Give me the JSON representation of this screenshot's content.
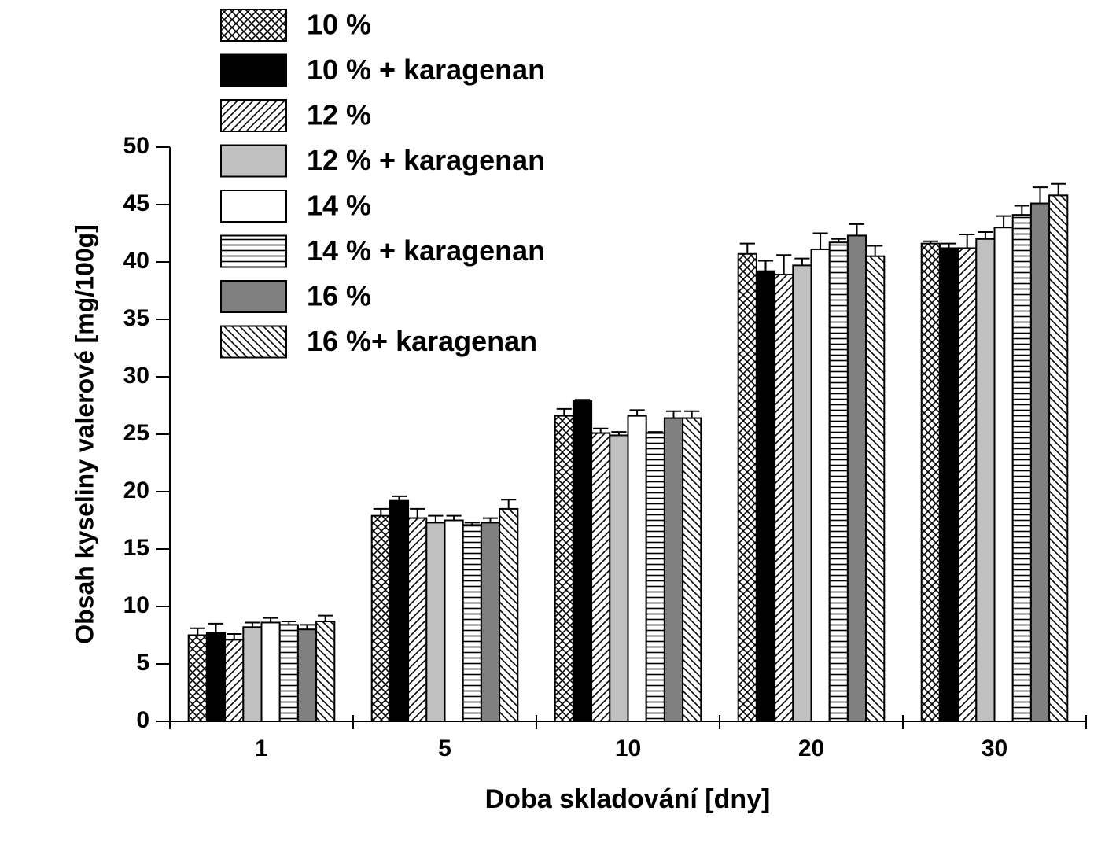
{
  "chart_data": {
    "type": "bar",
    "x_label": "Doba skladování [dny]",
    "y_label": "Obsah kyseliny valerové [mg/100g]",
    "categories": [
      "1",
      "5",
      "10",
      "20",
      "30"
    ],
    "ylim": [
      0,
      50
    ],
    "yticks": [
      0,
      5,
      10,
      15,
      20,
      25,
      30,
      35,
      40,
      45,
      50
    ],
    "error_bars": "up",
    "series": [
      {
        "name": "10 %",
        "color": "#000000",
        "pattern": "crosshatch",
        "values": [
          7.5,
          17.9,
          26.6,
          40.7,
          41.6
        ],
        "errors": [
          0.6,
          0.6,
          0.6,
          0.9,
          0.2
        ]
      },
      {
        "name": "10 % + karagenan",
        "color": "#000000",
        "pattern": "solid",
        "values": [
          7.7,
          19.2,
          27.9,
          39.2,
          41.2
        ],
        "errors": [
          0.8,
          0.4,
          0.1,
          0.9,
          0.4
        ]
      },
      {
        "name": "12 %",
        "color": "#000000",
        "pattern": "diagonal",
        "values": [
          7.1,
          17.7,
          25.1,
          38.9,
          41.2
        ],
        "errors": [
          0.5,
          0.8,
          0.4,
          1.7,
          1.2
        ]
      },
      {
        "name": "12 % + karagenan",
        "color": "#c0c0c0",
        "pattern": "solid",
        "values": [
          8.2,
          17.3,
          24.9,
          39.7,
          42.0
        ],
        "errors": [
          0.4,
          0.6,
          0.3,
          0.6,
          0.6
        ]
      },
      {
        "name": "14 %",
        "color": "#ffffff",
        "pattern": "solid",
        "values": [
          8.6,
          17.5,
          26.6,
          41.1,
          43.0
        ],
        "errors": [
          0.4,
          0.4,
          0.5,
          1.4,
          1.0
        ]
      },
      {
        "name": "14 % + karagenan",
        "color": "#000000",
        "pattern": "horizontal",
        "values": [
          8.4,
          17.1,
          25.1,
          41.7,
          44.1
        ],
        "errors": [
          0.3,
          0.2,
          0.1,
          0.3,
          0.8
        ]
      },
      {
        "name": "16 %",
        "color": "#808080",
        "pattern": "solid",
        "values": [
          8.0,
          17.3,
          26.4,
          42.3,
          45.1
        ],
        "errors": [
          0.4,
          0.4,
          0.6,
          1.0,
          1.4
        ]
      },
      {
        "name": "16 %+ karagenan",
        "color": "#000000",
        "pattern": "backdiagonal",
        "values": [
          8.7,
          18.5,
          26.4,
          40.5,
          45.8
        ],
        "errors": [
          0.5,
          0.8,
          0.6,
          0.9,
          1.0
        ]
      }
    ]
  }
}
